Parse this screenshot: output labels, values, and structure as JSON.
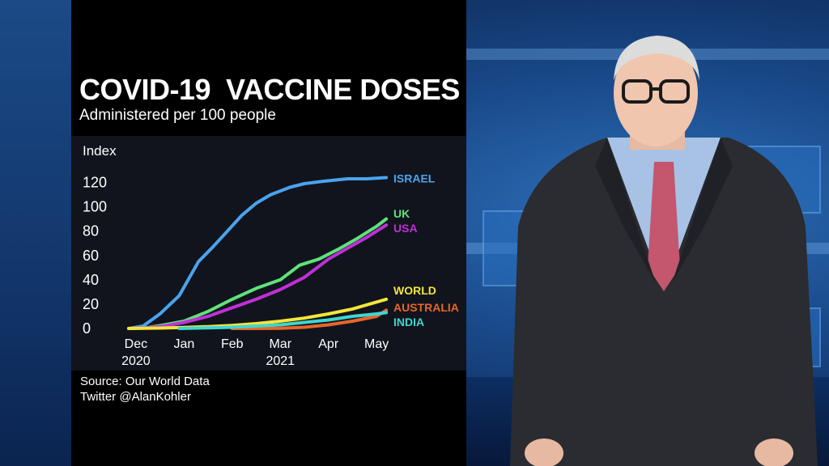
{
  "broadcast": {
    "title": "COVID-19  VACCINE DOSES",
    "subtitle": "Administered per 100 people",
    "source_lines": [
      "Source: Our World Data",
      "Twitter @AlanKohler"
    ]
  },
  "chart_data": {
    "type": "line",
    "title": "COVID-19  VACCINE DOSES",
    "subtitle": "Administered per 100 people",
    "ylabel": "Index",
    "ylim": [
      0,
      125
    ],
    "yticks": [
      0,
      20,
      40,
      60,
      80,
      100,
      120
    ],
    "x_ticks": [
      {
        "x": 0,
        "label": "Dec",
        "sublabel": "2020"
      },
      {
        "x": 1,
        "label": "Jan",
        "sublabel": ""
      },
      {
        "x": 2,
        "label": "Feb",
        "sublabel": ""
      },
      {
        "x": 3,
        "label": "Mar",
        "sublabel": "2021"
      },
      {
        "x": 4,
        "label": "Apr",
        "sublabel": ""
      },
      {
        "x": 5,
        "label": "May",
        "sublabel": ""
      }
    ],
    "xlim": [
      -0.2,
      5.3
    ],
    "grid": false,
    "legend": "inline labels at line ends",
    "series": [
      {
        "name": "ISRAEL",
        "color": "#4aa3ee",
        "x": [
          -0.15,
          0.15,
          0.5,
          0.9,
          1.3,
          1.6,
          1.9,
          2.2,
          2.5,
          2.8,
          3.2,
          3.5,
          3.9,
          4.4,
          4.8,
          5.2
        ],
        "y": [
          0,
          2,
          12,
          27,
          55,
          67,
          80,
          93,
          103,
          110,
          116,
          119,
          121,
          123,
          123,
          124
        ]
      },
      {
        "name": "UK",
        "color": "#5ee27a",
        "x": [
          -0.15,
          0.2,
          0.6,
          1.0,
          1.5,
          2.0,
          2.5,
          3.0,
          3.4,
          3.8,
          4.2,
          4.6,
          5.0,
          5.2
        ],
        "y": [
          0,
          0.5,
          3,
          6,
          14,
          24,
          33,
          40,
          52,
          57,
          65,
          74,
          84,
          90
        ]
      },
      {
        "name": "USA",
        "color": "#c030d8",
        "x": [
          -0.15,
          0.2,
          0.6,
          1.0,
          1.5,
          2.0,
          2.5,
          3.0,
          3.5,
          4.0,
          4.4,
          4.8,
          5.2
        ],
        "y": [
          0,
          0.5,
          2,
          5,
          10,
          17,
          24,
          32,
          42,
          57,
          66,
          75,
          85
        ]
      },
      {
        "name": "WORLD",
        "color": "#f2e63a",
        "x": [
          -0.15,
          0.5,
          1.0,
          1.5,
          2.0,
          2.5,
          3.0,
          3.5,
          4.0,
          4.5,
          5.2
        ],
        "y": [
          0,
          0.3,
          0.8,
          1.5,
          2.5,
          4,
          6,
          8.5,
          12,
          16,
          24
        ]
      },
      {
        "name": "AUSTRALIA",
        "color": "#e8662a",
        "x": [
          2.0,
          2.5,
          3.0,
          3.5,
          4.0,
          4.5,
          5.0,
          5.2
        ],
        "y": [
          0,
          0,
          0.2,
          1,
          3,
          6,
          10,
          15
        ]
      },
      {
        "name": "INDIA",
        "color": "#3fd6d0",
        "x": [
          0.9,
          1.5,
          2.0,
          2.5,
          3.0,
          3.5,
          4.0,
          4.5,
          5.0,
          5.2
        ],
        "y": [
          0,
          0.5,
          1,
          2,
          3,
          5,
          7,
          10,
          12,
          13
        ]
      }
    ],
    "series_label_positions": {
      "ISRAEL": 124,
      "UK": 95,
      "USA": 83,
      "WORLD": 32,
      "AUSTRALIA": 18,
      "INDIA": 6
    }
  }
}
